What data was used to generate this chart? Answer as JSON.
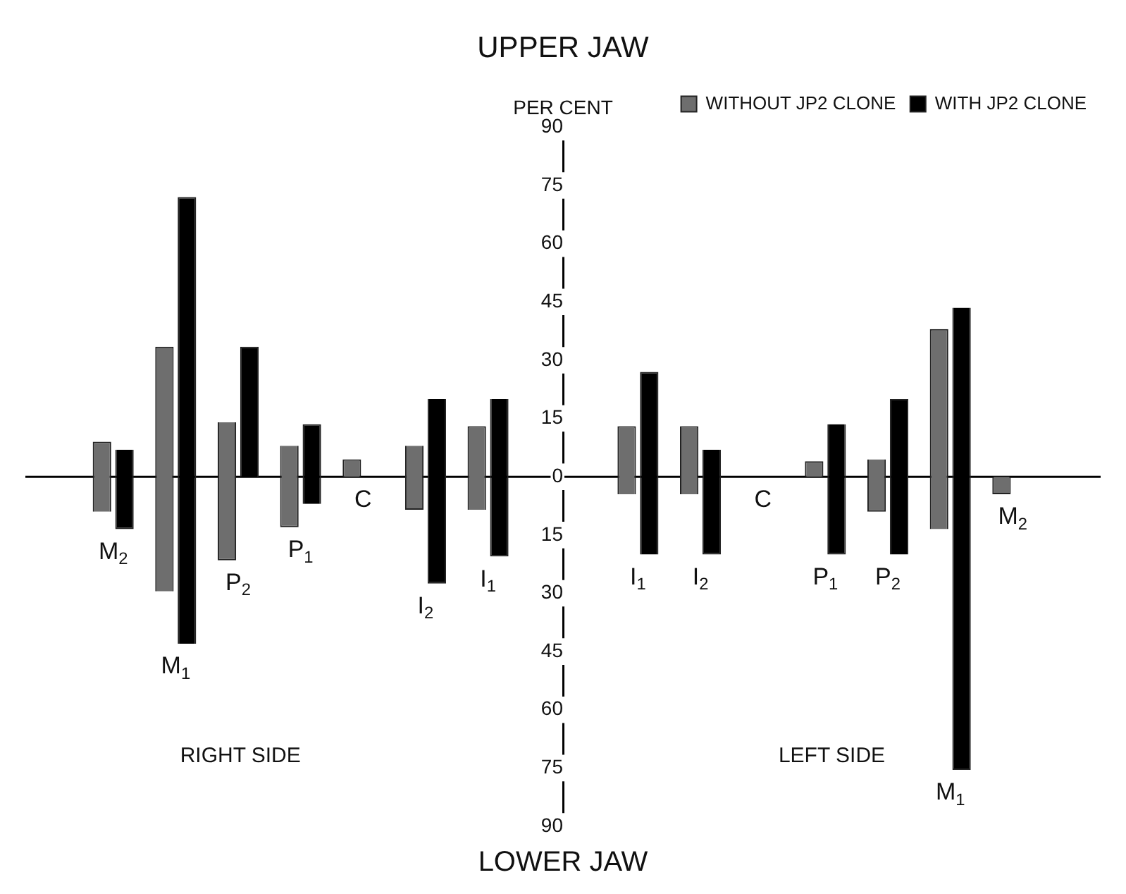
{
  "chart_data": {
    "type": "bar",
    "title": "UPPER JAW",
    "ylabel": "PER CENT",
    "annotations": [
      "RIGHT SIDE",
      "LEFT SIDE",
      "LOWER JAW"
    ],
    "categories": [
      "M$_{2}$",
      "M$_{1}$",
      "P$_{2}$",
      "P$_{1}$",
      "C",
      "I$_{2}$",
      "I$_{1}$",
      "I$_{1}$",
      "I$_{2}$",
      "C",
      "P$_{1}$",
      "P$_{2}$",
      "M$_{1}$",
      "M$_{2}$"
    ],
    "series": [
      {
        "name": "WITHOUT JP2 CLONE",
        "color": "#6e6e6e",
        "base": [
          -9,
          -29.5,
          -21.5,
          -13,
          0,
          -8.5,
          -8.5,
          -4.5,
          -4.5,
          null,
          0,
          -9,
          -13.5,
          -4.5
        ],
        "values": [
          18,
          63,
          35.5,
          21,
          4.5,
          16.5,
          21.5,
          17.5,
          17.5,
          null,
          4,
          13.5,
          51.5,
          4.5
        ]
      },
      {
        "name": "WITH JP2 CLONE",
        "color": "#000000",
        "base": [
          -13.5,
          -43,
          0,
          -7,
          null,
          -27.5,
          -20.5,
          -20,
          -20,
          null,
          -20,
          -20,
          -75.5,
          null
        ],
        "values": [
          20.5,
          115,
          33.5,
          20.5,
          null,
          47.5,
          40.5,
          47,
          27,
          null,
          33.5,
          40,
          119,
          null
        ]
      }
    ],
    "ylim": [
      -90,
      90
    ],
    "yticks": [
      {
        "value": -90,
        "label": "90"
      },
      {
        "value": -75,
        "label": "75"
      },
      {
        "value": -60,
        "label": "60"
      },
      {
        "value": -45,
        "label": "45"
      },
      {
        "value": -30,
        "label": "30"
      },
      {
        "value": -15,
        "label": "15"
      },
      0,
      15,
      30,
      45,
      60,
      75,
      90
    ],
    "ref_lines": [
      {
        "axis": "y",
        "value": 0,
        "color": "#000000"
      }
    ],
    "grid": false,
    "legend": "top right"
  }
}
